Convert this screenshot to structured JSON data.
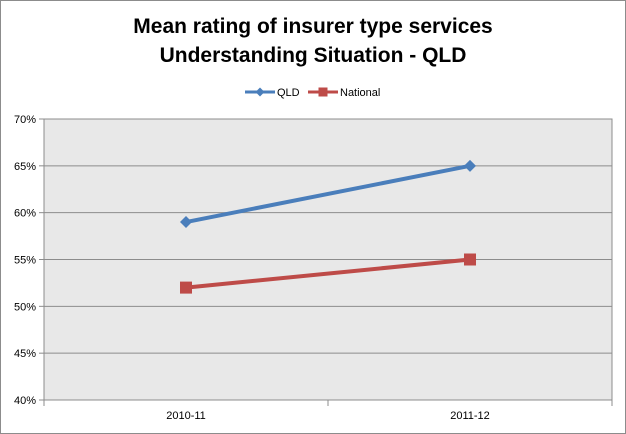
{
  "chart_data": {
    "type": "line",
    "title": [
      "Mean rating of insurer type services",
      "Understanding Situation - QLD"
    ],
    "categories": [
      "2010-11",
      "2011-12"
    ],
    "series": [
      {
        "name": "QLD",
        "values": [
          0.59,
          0.65
        ],
        "color": "#4a7ebb",
        "marker": "diamond"
      },
      {
        "name": "National",
        "values": [
          0.52,
          0.55
        ],
        "color": "#be4b48",
        "marker": "square"
      }
    ],
    "ylim": [
      0.4,
      0.7
    ],
    "yticks": [
      "40%",
      "45%",
      "50%",
      "55%",
      "60%",
      "65%",
      "70%"
    ],
    "grid": true,
    "legend_position": "top",
    "plot_background": "#e8e8e8"
  }
}
